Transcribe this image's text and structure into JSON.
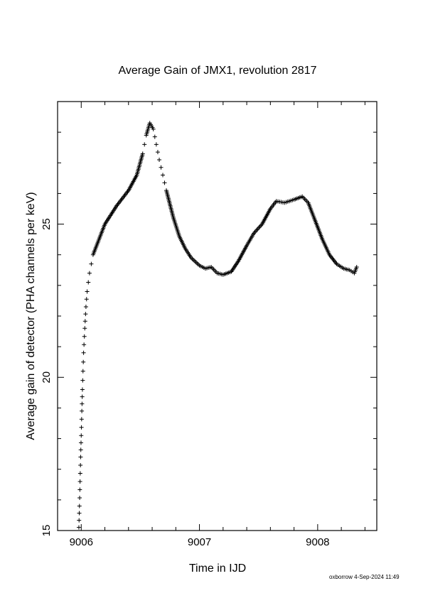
{
  "chart_data": {
    "type": "scatter",
    "title": "Average Gain of JMX1, revolution 2817",
    "xlabel": "Time in IJD",
    "ylabel": "Average gain of detector (PHA channels per keV)",
    "xlim": [
      9005.8,
      9008.5
    ],
    "ylim": [
      15,
      29
    ],
    "xticks": [
      9006,
      9007,
      9008
    ],
    "xtick_labels": [
      "9006",
      "9007",
      "9008"
    ],
    "yticks": [
      15,
      20,
      25
    ],
    "ytick_labels": [
      "15",
      "20",
      "25"
    ],
    "marker": "plus",
    "grid": false,
    "series": [
      {
        "values": [
          [
            9005.98,
            15.1
          ],
          [
            9005.985,
            15.8
          ],
          [
            9005.99,
            16.6
          ],
          [
            9005.995,
            17.4
          ],
          [
            9006.0,
            18.1
          ],
          [
            9006.005,
            18.9
          ],
          [
            9006.01,
            19.6
          ],
          [
            9006.015,
            20.2
          ],
          [
            9006.02,
            20.8
          ],
          [
            9006.03,
            21.6
          ],
          [
            9006.04,
            22.3
          ],
          [
            9006.05,
            22.8
          ],
          [
            9006.07,
            23.4
          ],
          [
            9006.1,
            24.0
          ],
          [
            9006.15,
            24.5
          ],
          [
            9006.2,
            25.0
          ],
          [
            9006.3,
            25.6
          ],
          [
            9006.4,
            26.1
          ],
          [
            9006.47,
            26.6
          ],
          [
            9006.52,
            27.3
          ],
          [
            9006.55,
            27.9
          ],
          [
            9006.58,
            28.3
          ],
          [
            9006.61,
            28.1
          ],
          [
            9006.66,
            27.1
          ],
          [
            9006.72,
            26.1
          ],
          [
            9006.78,
            25.2
          ],
          [
            9006.83,
            24.6
          ],
          [
            9006.88,
            24.2
          ],
          [
            9006.93,
            23.9
          ],
          [
            9007.0,
            23.65
          ],
          [
            9007.05,
            23.55
          ],
          [
            9007.1,
            23.6
          ],
          [
            9007.15,
            23.4
          ],
          [
            9007.2,
            23.35
          ],
          [
            9007.27,
            23.45
          ],
          [
            9007.33,
            23.8
          ],
          [
            9007.4,
            24.3
          ],
          [
            9007.46,
            24.7
          ],
          [
            9007.53,
            25.0
          ],
          [
            9007.6,
            25.5
          ],
          [
            9007.65,
            25.75
          ],
          [
            9007.72,
            25.7
          ],
          [
            9007.8,
            25.8
          ],
          [
            9007.87,
            25.9
          ],
          [
            9007.92,
            25.7
          ],
          [
            9007.97,
            25.2
          ],
          [
            9008.04,
            24.5
          ],
          [
            9008.1,
            24.0
          ],
          [
            9008.16,
            23.7
          ],
          [
            9008.22,
            23.55
          ],
          [
            9008.27,
            23.5
          ],
          [
            9008.31,
            23.4
          ],
          [
            9008.33,
            23.6
          ]
        ]
      }
    ]
  },
  "footer": "oxborrow  4-Sep-2024 11:49"
}
